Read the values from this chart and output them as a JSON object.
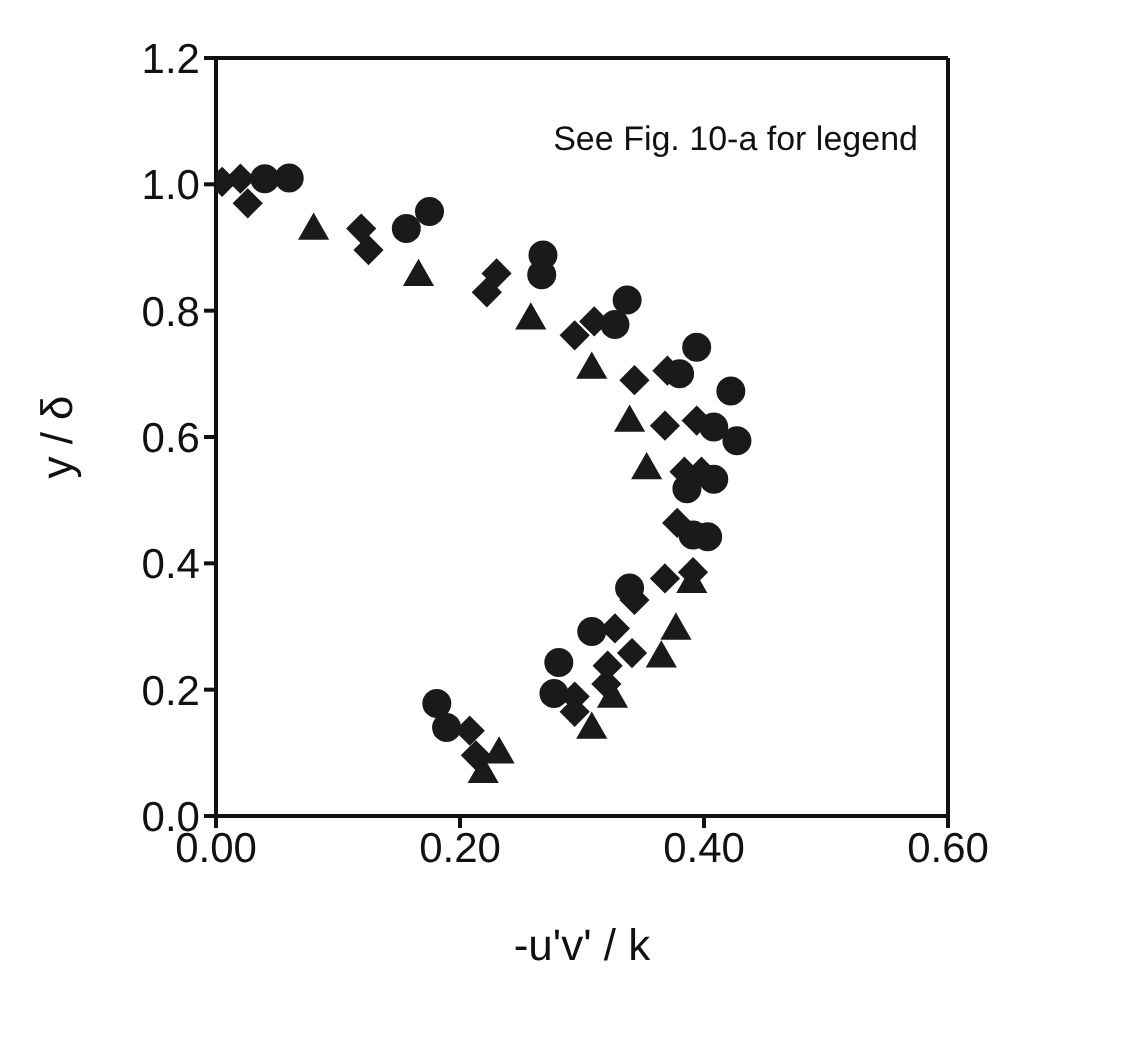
{
  "chart_data": {
    "type": "scatter",
    "xlabel": "-u'v' / k",
    "ylabel": "y / δ",
    "annotations": [
      "See Fig. 10-a for legend"
    ],
    "xlim": [
      0,
      0.6
    ],
    "xticks": [
      {
        "value": 0,
        "label": "0.00"
      },
      {
        "value": 0.2,
        "label": "0.20"
      },
      {
        "value": 0.4,
        "label": "0.40"
      },
      {
        "value": 0.6,
        "label": "0.60"
      }
    ],
    "ylim": [
      0,
      1.2
    ],
    "yticks": [
      {
        "value": 0,
        "label": "0.0"
      },
      {
        "value": 0.2,
        "label": "0.2"
      },
      {
        "value": 0.4,
        "label": "0.4"
      },
      {
        "value": 0.6,
        "label": "0.6"
      },
      {
        "value": 0.8,
        "label": "0.8"
      },
      {
        "value": 1,
        "label": "1.0"
      },
      {
        "value": 1.2,
        "label": "1.2"
      }
    ],
    "grid": false,
    "legend": false,
    "series": [
      {
        "color": "#1a1a1a",
        "marker": "circle",
        "x": [
          0.06,
          0.175,
          0.268,
          0.337,
          0.394,
          0.422,
          0.427,
          0.386,
          0.403,
          0.339,
          0.281,
          0.181
        ],
        "values": [
          1.01,
          0.957,
          0.888,
          0.817,
          0.742,
          0.673,
          0.594,
          0.518,
          0.442,
          0.361,
          0.243,
          0.178
        ]
      },
      {
        "color": "#1a1a1a",
        "marker": "circle",
        "x": [
          0.04,
          0.156,
          0.267,
          0.327,
          0.38,
          0.408,
          0.408,
          0.391,
          0.308,
          0.277,
          0.189
        ],
        "values": [
          1.009,
          0.93,
          0.857,
          0.778,
          0.7,
          0.616,
          0.533,
          0.445,
          0.292,
          0.194,
          0.14
        ]
      },
      {
        "color": "#1a1a1a",
        "marker": "diamond",
        "x": [
          0.02,
          0.119,
          0.23,
          0.31,
          0.37,
          0.394,
          0.398,
          0.378,
          0.368,
          0.343,
          0.327,
          0.321,
          0.294,
          0.208
        ],
        "values": [
          1.009,
          0.93,
          0.859,
          0.783,
          0.705,
          0.626,
          0.545,
          0.464,
          0.376,
          0.342,
          0.297,
          0.238,
          0.189,
          0.135
        ]
      },
      {
        "color": "#1a1a1a",
        "marker": "diamond",
        "x": [
          0.005,
          0.026,
          0.125,
          0.222,
          0.294,
          0.343,
          0.368,
          0.384,
          0.391,
          0.341,
          0.32,
          0.294,
          0.213
        ],
        "values": [
          1.004,
          0.97,
          0.896,
          0.829,
          0.761,
          0.69,
          0.618,
          0.545,
          0.386,
          0.258,
          0.209,
          0.165,
          0.096
        ]
      },
      {
        "color": "#1a1a1a",
        "marker": "triangle",
        "x": [
          0.08,
          0.166,
          0.258,
          0.308,
          0.339,
          0.353,
          0.39,
          0.377,
          0.365,
          0.325,
          0.308,
          0.232,
          0.219
        ],
        "values": [
          0.93,
          0.857,
          0.788,
          0.71,
          0.626,
          0.551,
          0.371,
          0.297,
          0.253,
          0.189,
          0.14,
          0.101,
          0.07
        ]
      }
    ]
  }
}
